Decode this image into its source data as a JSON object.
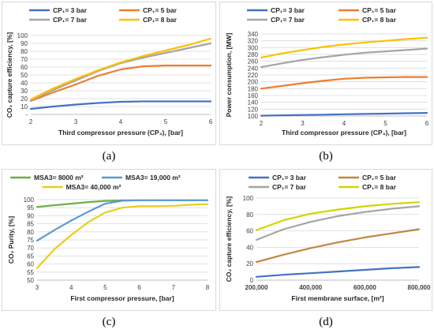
{
  "chart_data": [
    {
      "type": "line",
      "caption": "(a)",
      "xlabel": "Third compressor pressure (CP₃), [bar]",
      "ylabel": "CO₂ capture efficiency, [%]",
      "xlim": [
        2,
        6
      ],
      "ylim": [
        0,
        100
      ],
      "x_ticks": [
        "2",
        "3",
        "4",
        "5",
        "6"
      ],
      "y_ticks": [
        "-",
        "10",
        "20",
        "30",
        "40",
        "50",
        "60",
        "70",
        "80",
        "90",
        "100"
      ],
      "x": [
        2,
        2.5,
        3,
        3.5,
        4,
        4.5,
        5,
        5.5,
        6
      ],
      "grid": true,
      "legend_position": "top",
      "series": [
        {
          "name": "CP₁= 3 bar",
          "color": "#4472c4",
          "values": [
            7,
            10,
            12.5,
            14.5,
            16,
            16.5,
            16.5,
            16.5,
            16.5
          ]
        },
        {
          "name": "CP₁= 5 bar",
          "color": "#ed7d31",
          "values": [
            17,
            28,
            38,
            49,
            57,
            61,
            62,
            62,
            62
          ]
        },
        {
          "name": "CP₁= 7 bar",
          "color": "#a5a5a5",
          "values": [
            18,
            31,
            43,
            55,
            65,
            72,
            78,
            84,
            90
          ]
        },
        {
          "name": "CP₁= 8 bar",
          "color": "#ffc000",
          "values": [
            19,
            33,
            45,
            56,
            66,
            74,
            81,
            88,
            96
          ]
        }
      ]
    },
    {
      "type": "line",
      "caption": "(b)",
      "xlabel": "Third compressor pressure (CP₃), [bar]",
      "ylabel": "Power consumption, [MW]",
      "xlim": [
        2,
        6
      ],
      "ylim": [
        100,
        340
      ],
      "x_ticks": [
        "2",
        "3",
        "4",
        "5",
        "6"
      ],
      "y_ticks": [
        "100",
        "120",
        "140",
        "160",
        "180",
        "200",
        "220",
        "240",
        "260",
        "280",
        "300",
        "320",
        "340"
      ],
      "x": [
        2,
        2.5,
        3,
        3.5,
        4,
        4.5,
        5,
        5.5,
        6
      ],
      "grid": true,
      "legend_position": "top",
      "series": [
        {
          "name": "CP₁= 3 bar",
          "color": "#4472c4",
          "values": [
            101,
            102,
            103,
            104,
            105,
            106,
            107,
            108,
            109
          ]
        },
        {
          "name": "CP₁= 5 bar",
          "color": "#ed7d31",
          "values": [
            180,
            188,
            196,
            203,
            209,
            212,
            213,
            214,
            214
          ]
        },
        {
          "name": "CP₁= 7 bar",
          "color": "#a5a5a5",
          "values": [
            243,
            254,
            264,
            272,
            279,
            285,
            289,
            293,
            297
          ]
        },
        {
          "name": "CP₁= 8 bar",
          "color": "#ffc000",
          "values": [
            271,
            283,
            293,
            302,
            309,
            315,
            320,
            325,
            329
          ]
        }
      ]
    },
    {
      "type": "line",
      "caption": "(c)",
      "xlabel": "First compressor pressure, [bar]",
      "ylabel": "CO₂ Purity, [%]",
      "xlim": [
        3,
        8
      ],
      "ylim": [
        50,
        100
      ],
      "x_ticks": [
        "3",
        "4",
        "5",
        "6",
        "7",
        "8"
      ],
      "y_ticks": [
        "50",
        "55",
        "60",
        "65",
        "70",
        "75",
        "80",
        "85",
        "90",
        "95",
        "100"
      ],
      "x": [
        3,
        3.5,
        4,
        4.5,
        5,
        5.5,
        6,
        6.5,
        7,
        7.5,
        8
      ],
      "grid": true,
      "legend_position": "top",
      "series": [
        {
          "name": "MSA3= 8000 m²",
          "color": "#70ad47",
          "values": [
            95.5,
            96.5,
            97.5,
            98.5,
            99.2,
            99.5,
            99.6,
            99.6,
            99.6,
            99.6,
            99.6
          ]
        },
        {
          "name": "MSA3= 19,000 m²",
          "color": "#5b9bd5",
          "values": [
            74.5,
            81,
            87,
            92.5,
            97.5,
            99.3,
            99.6,
            99.6,
            99.6,
            99.6,
            99.6
          ]
        },
        {
          "name": "MSA3= 40,000 m²",
          "color": "#e6cf1c",
          "values": [
            57.5,
            69,
            78,
            86,
            92,
            95,
            96,
            96,
            96.2,
            96.8,
            97.2
          ]
        }
      ]
    },
    {
      "type": "line",
      "caption": "(d)",
      "xlabel": "First membrane surface, [m²]",
      "ylabel": "CO₂ capture efficiency, [%]",
      "xlim": [
        200000,
        800000
      ],
      "ylim": [
        0,
        100
      ],
      "x_ticks": [
        "200,000",
        "400,000",
        "600,000",
        "800,000"
      ],
      "y_ticks": [
        "0",
        "20",
        "40",
        "60",
        "80",
        "100"
      ],
      "x": [
        200000,
        300000,
        400000,
        500000,
        600000,
        700000,
        800000
      ],
      "grid": true,
      "legend_position": "top",
      "series": [
        {
          "name": "CP₁= 3 bar",
          "color": "#4472c4",
          "values": [
            4,
            6.5,
            8.5,
            10.5,
            12.5,
            14.5,
            16
          ]
        },
        {
          "name": "CP₁= 5 bar",
          "color": "#c0873f",
          "values": [
            22,
            31,
            39,
            46,
            52,
            57,
            62
          ]
        },
        {
          "name": "CP₁= 7 bar",
          "color": "#a5a5a5",
          "values": [
            49,
            62,
            71,
            78,
            83,
            87,
            90
          ]
        },
        {
          "name": "CP₁= 8 bar",
          "color": "#d4d400",
          "values": [
            61,
            73,
            81,
            86,
            90,
            93,
            95
          ]
        }
      ]
    }
  ]
}
